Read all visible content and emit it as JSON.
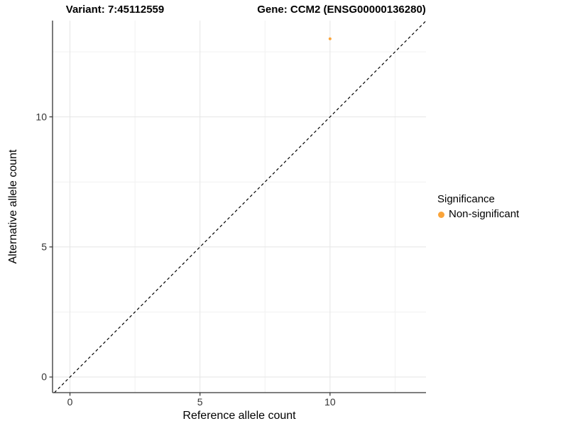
{
  "titles": {
    "variant": "Variant: 7:45112559",
    "gene": "Gene: CCM2 (ENSG00000136280)"
  },
  "chart_data": {
    "type": "scatter",
    "title_left": "Variant: 7:45112559",
    "title_right": "Gene: CCM2 (ENSG00000136280)",
    "xlabel": "Reference allele count",
    "ylabel": "Alternative allele count",
    "xlim": [
      -0.67,
      13.69
    ],
    "ylim": [
      -0.6,
      13.7
    ],
    "x_major_ticks": [
      0,
      5,
      10
    ],
    "y_major_ticks": [
      0,
      5,
      10
    ],
    "x_minor_ticks": [
      2.5,
      7.5,
      12.5
    ],
    "y_minor_ticks": [
      2.5,
      7.5,
      12.5
    ],
    "grid": "major+minor",
    "reference_line": {
      "kind": "abline",
      "slope": 1,
      "intercept": 0,
      "style": "dashed",
      "color": "#000000"
    },
    "series": [
      {
        "name": "Non-significant",
        "color": "#FAA43A",
        "points": [
          {
            "x": 10,
            "y": 13
          }
        ]
      }
    ],
    "legend": {
      "title": "Significance",
      "position": "right",
      "entries": [
        {
          "label": "Non-significant",
          "color": "#FAA43A"
        }
      ]
    },
    "colors": {
      "grid_major": "#E5E5E5",
      "grid_minor": "#F1F1F1",
      "axis_line": "#333333",
      "tick_mark": "#333333",
      "tick_text": "#333333"
    }
  }
}
